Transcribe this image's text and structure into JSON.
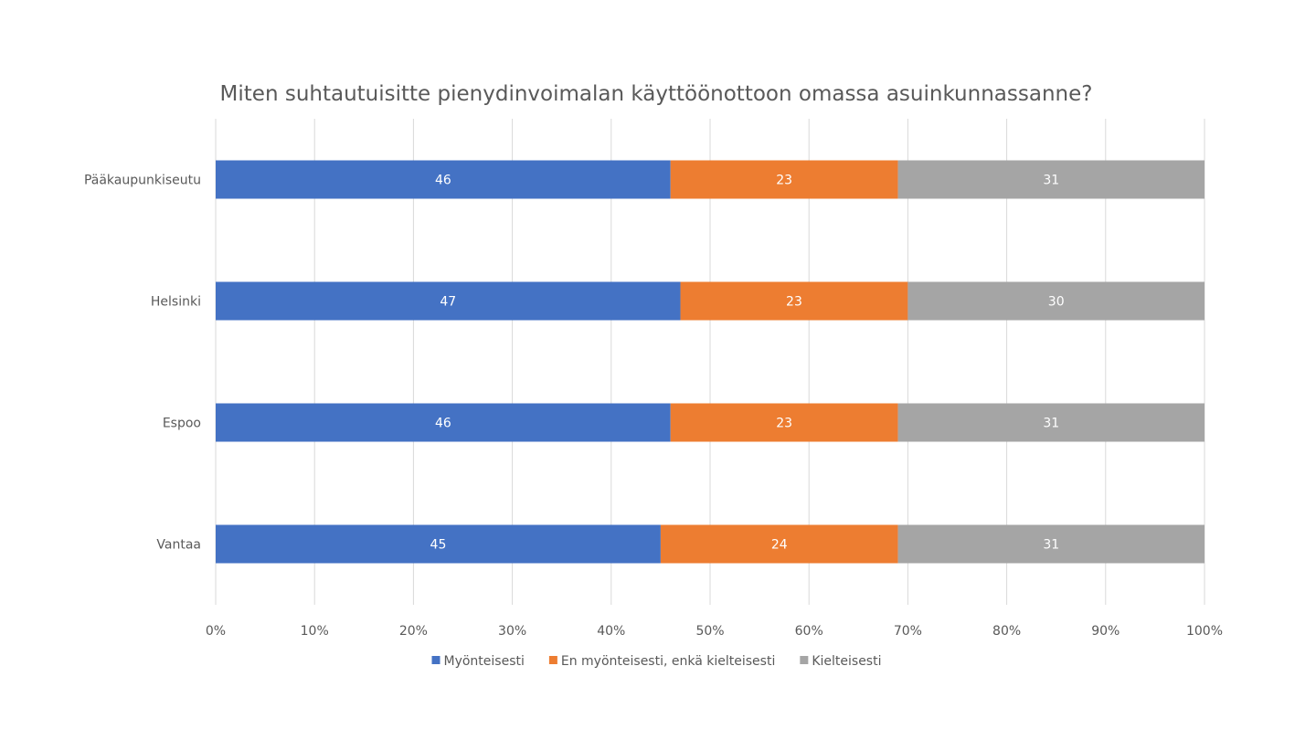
{
  "chart_data": {
    "type": "bar",
    "orientation": "horizontal",
    "stacked": "percent",
    "title": "Miten suhtautuisitte pienydinvoimalan käyttöönottoon omassa asuinkunnassanne?",
    "categories": [
      "Pääkaupunkiseutu",
      "Helsinki",
      "Espoo",
      "Vantaa"
    ],
    "series": [
      {
        "name": "Myönteisesti",
        "color": "#4472C4",
        "values": [
          46,
          47,
          46,
          45
        ]
      },
      {
        "name": "En myönteisesti, enkä kielteisesti",
        "color": "#ED7D31",
        "values": [
          23,
          23,
          23,
          24
        ]
      },
      {
        "name": "Kielteisesti",
        "color": "#A5A5A5",
        "values": [
          31,
          30,
          31,
          31
        ]
      }
    ],
    "xlim": [
      0,
      100
    ],
    "xticks": [
      "0%",
      "10%",
      "20%",
      "30%",
      "40%",
      "50%",
      "60%",
      "70%",
      "80%",
      "90%",
      "100%"
    ],
    "grid": true,
    "legend": "bottom"
  }
}
